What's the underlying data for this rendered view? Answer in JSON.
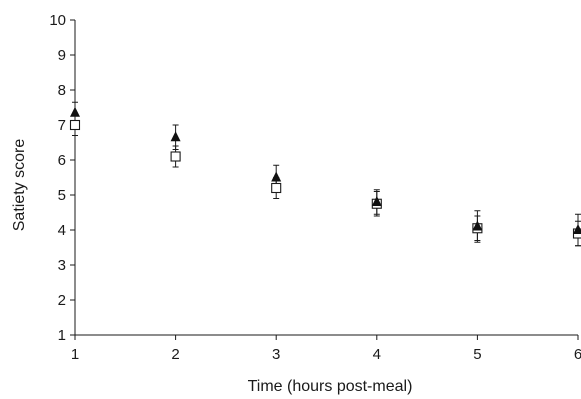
{
  "chart_data": {
    "type": "scatter",
    "xlabel": "Time (hours post-meal)",
    "ylabel": "Satiety score",
    "xlim": [
      1,
      6
    ],
    "ylim": [
      1,
      10
    ],
    "xticks": [
      "1",
      "2",
      "3",
      "4",
      "5",
      "6"
    ],
    "yticks": [
      "1",
      "2",
      "3",
      "4",
      "5",
      "6",
      "7",
      "8",
      "9",
      "10"
    ],
    "grid": false,
    "series": [
      {
        "marker": "open-square",
        "color": "#1a1a1a",
        "points": [
          {
            "x": 1,
            "y": 7.0,
            "err": 0.3
          },
          {
            "x": 2,
            "y": 6.1,
            "err": 0.3
          },
          {
            "x": 3,
            "y": 5.2,
            "err": 0.3
          },
          {
            "x": 4,
            "y": 4.75,
            "err": 0.35
          },
          {
            "x": 5,
            "y": 4.05,
            "err": 0.35
          },
          {
            "x": 6,
            "y": 3.9,
            "err": 0.35
          }
        ]
      },
      {
        "marker": "filled-triangle",
        "color": "#111111",
        "points": [
          {
            "x": 1,
            "y": 7.35,
            "err": 0.3
          },
          {
            "x": 2,
            "y": 6.65,
            "err": 0.35
          },
          {
            "x": 3,
            "y": 5.5,
            "err": 0.35
          },
          {
            "x": 4,
            "y": 4.8,
            "err": 0.35
          },
          {
            "x": 5,
            "y": 4.1,
            "err": 0.45
          },
          {
            "x": 6,
            "y": 4.0,
            "err": 0.45
          }
        ]
      }
    ]
  }
}
